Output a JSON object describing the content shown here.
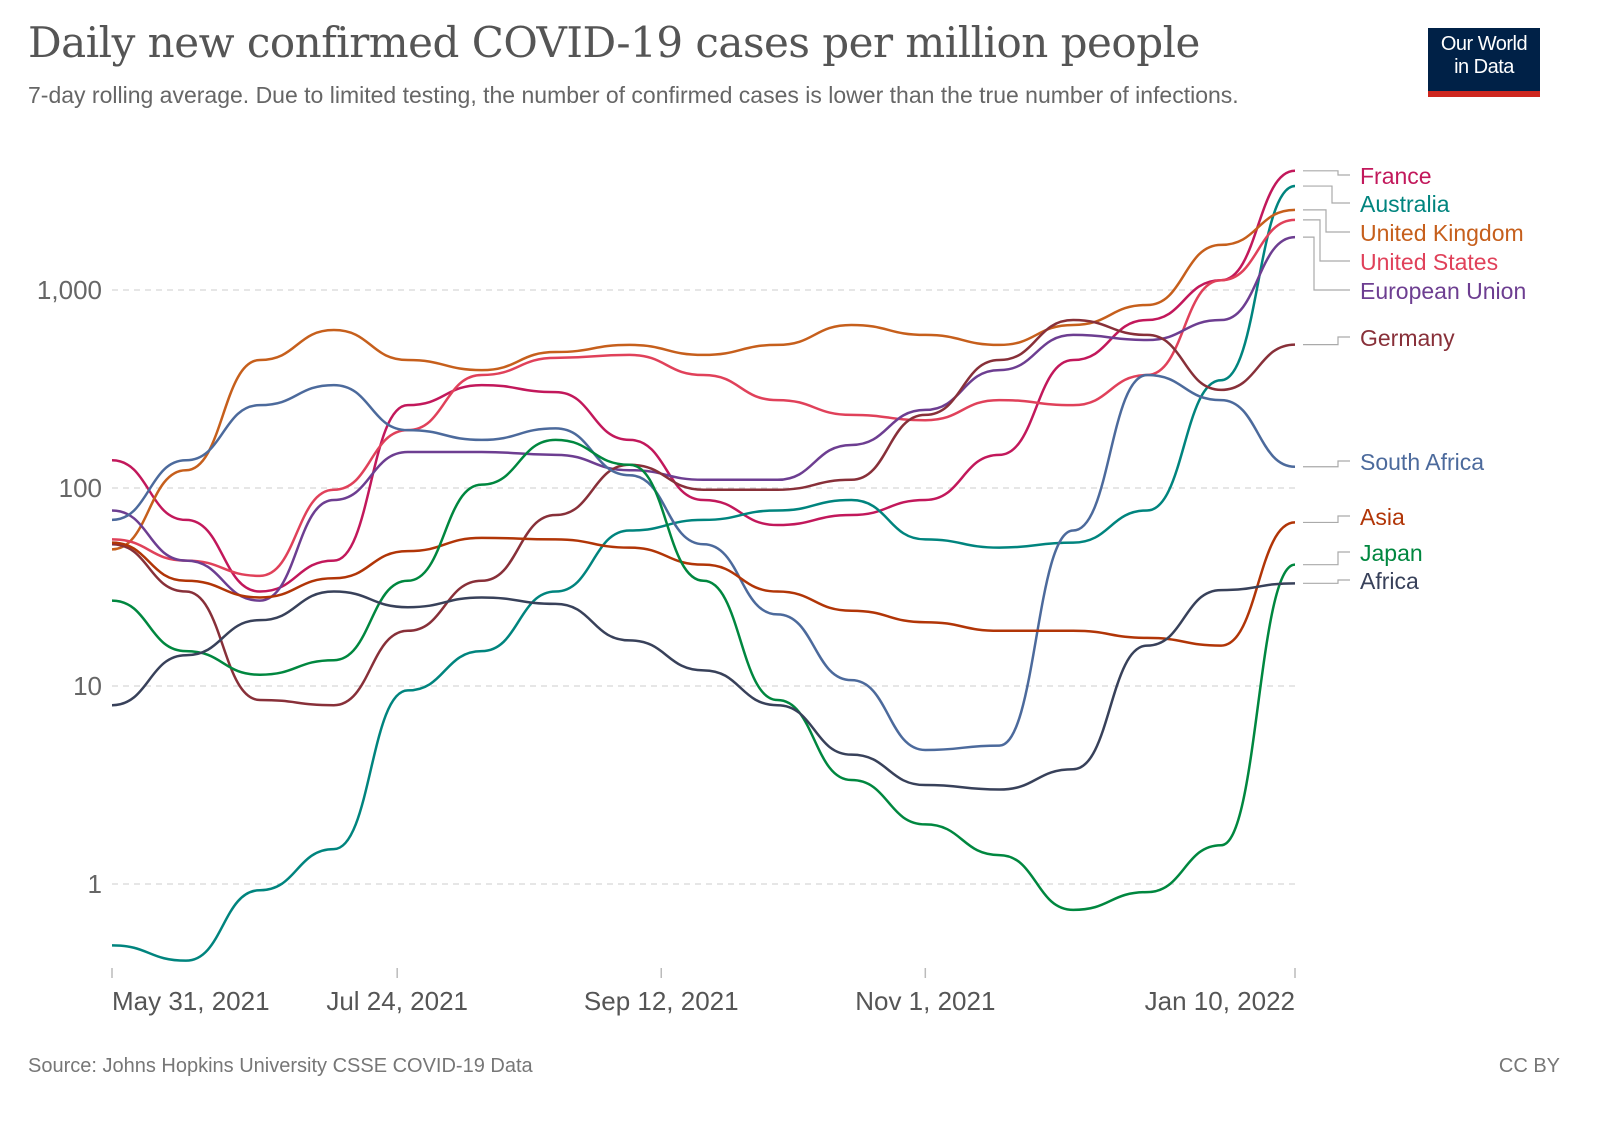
{
  "header": {
    "title": "Daily new confirmed COVID-19 cases per million people",
    "subtitle": "7-day rolling average. Due to limited testing, the number of confirmed cases is lower than the true number of infections.",
    "logo_text": "Our World in Data"
  },
  "footer": {
    "source": "Source: Johns Hopkins University CSSE COVID-19 Data",
    "license": "CC BY"
  },
  "chart_data": {
    "type": "line",
    "title": "Daily new confirmed COVID-19 cases per million people",
    "xlabel": "",
    "ylabel": "",
    "y_scale": "log",
    "ylim": [
      0.37,
      4000
    ],
    "xlim": [
      "2021-05-31",
      "2022-01-10"
    ],
    "grid": "horizontal dashed",
    "legend": "right, line-end labels",
    "y_ticks": [
      {
        "value": 1,
        "label": "1"
      },
      {
        "value": 10,
        "label": "10"
      },
      {
        "value": 100,
        "label": "100"
      },
      {
        "value": 1000,
        "label": "1,000"
      }
    ],
    "x_ticks": [
      {
        "date": "2021-05-31",
        "label": "May 31, 2021"
      },
      {
        "date": "2021-07-24",
        "label": "Jul 24, 2021"
      },
      {
        "date": "2021-09-12",
        "label": "Sep 12, 2021"
      },
      {
        "date": "2021-11-01",
        "label": "Nov 1, 2021"
      },
      {
        "date": "2022-01-10",
        "label": "Jan 10, 2022"
      }
    ],
    "x": [
      "2021-05-31",
      "2021-06-14",
      "2021-06-28",
      "2021-07-12",
      "2021-07-26",
      "2021-08-09",
      "2021-08-23",
      "2021-09-06",
      "2021-09-20",
      "2021-10-04",
      "2021-10-18",
      "2021-11-01",
      "2021-11-15",
      "2021-11-29",
      "2021-12-13",
      "2021-12-27",
      "2022-01-10"
    ],
    "series": [
      {
        "name": "France",
        "color": "#c2185b",
        "values": [
          138,
          69,
          30,
          43,
          262,
          331,
          305,
          175,
          87,
          65,
          73,
          87,
          147,
          443,
          705,
          1120,
          4000
        ]
      },
      {
        "name": "Australia",
        "color": "#00847e",
        "values": [
          0.49,
          0.41,
          0.93,
          1.5,
          9.5,
          15,
          30,
          61,
          69,
          77,
          87,
          55,
          50,
          53,
          77,
          350,
          3350
        ]
      },
      {
        "name": "United Kingdom",
        "color": "#c65f1c",
        "values": [
          49,
          123,
          443,
          628,
          443,
          394,
          486,
          528,
          470,
          528,
          666,
          593,
          528,
          666,
          840,
          1690,
          2540
        ]
      },
      {
        "name": "United States",
        "color": "#e0415a",
        "values": [
          55,
          43,
          36,
          98,
          196,
          372,
          454,
          470,
          372,
          278,
          234,
          220,
          278,
          262,
          372,
          1120,
          2260
        ]
      },
      {
        "name": "European Union",
        "color": "#6d3e91",
        "values": [
          77,
          43,
          27,
          87,
          152,
          152,
          147,
          123,
          110,
          110,
          165,
          248,
          394,
          593,
          559,
          705,
          1850
        ]
      },
      {
        "name": "Germany",
        "color": "#883039",
        "values": [
          52,
          30,
          8.5,
          8,
          19,
          34,
          73,
          131,
          98,
          98,
          110,
          234,
          443,
          705,
          593,
          313,
          530
        ]
      },
      {
        "name": "South Africa",
        "color": "#4c6a9c",
        "values": [
          69,
          138,
          262,
          331,
          196,
          175,
          200,
          116,
          52,
          23,
          10.7,
          4.75,
          5,
          61,
          372,
          278,
          128
        ]
      },
      {
        "name": "Asia",
        "color": "#b13507",
        "values": [
          53,
          34,
          28,
          35,
          48,
          56,
          55,
          50,
          41,
          30,
          24,
          21,
          19,
          19,
          17.5,
          16,
          67
        ]
      },
      {
        "name": "Japan",
        "color": "#00873f",
        "values": [
          27,
          15,
          11.4,
          13.5,
          34,
          104,
          175,
          131,
          34,
          8.5,
          3.35,
          2,
          1.4,
          0.74,
          0.91,
          1.57,
          41
        ]
      },
      {
        "name": "Africa",
        "color": "#38415a",
        "values": [
          8,
          14.3,
          21.5,
          30,
          25,
          28,
          26,
          17,
          12,
          8,
          4.5,
          3.16,
          3,
          3.8,
          16,
          30.5,
          33
        ]
      }
    ]
  }
}
